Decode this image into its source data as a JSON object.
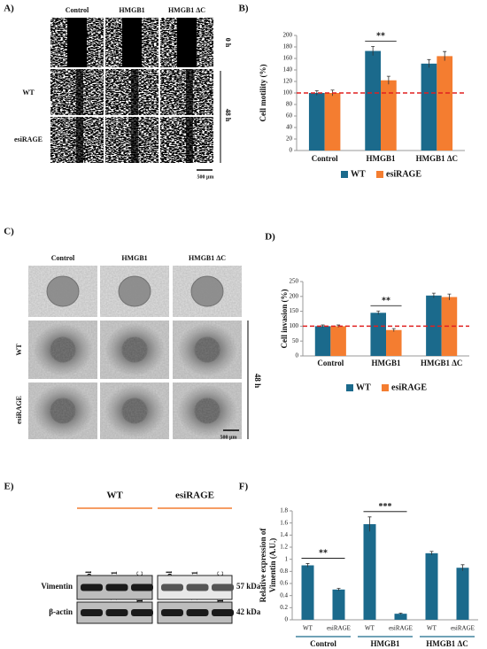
{
  "panel_labels": [
    "A)",
    "B)",
    "C)",
    "D)",
    "E)",
    "F)"
  ],
  "panel_a": {
    "columns": [
      "Control",
      "HMGB1",
      "HMGB1 ΔC"
    ],
    "rows": [
      "WT",
      "esiRAGE"
    ],
    "times": [
      "0 h",
      "48 h"
    ],
    "scale": "500 µm"
  },
  "panel_c": {
    "columns": [
      "Control",
      "HMGB1",
      "HMGB1 ΔC"
    ],
    "rows": [
      "WT",
      "esiRAGE"
    ],
    "time": "48 h",
    "scale": "500 µm"
  },
  "panel_e": {
    "groups": [
      "WT",
      "esiRAGE"
    ],
    "lanes": [
      "Control",
      "HMGB1",
      "HMGB1 ΔC"
    ],
    "proteins": [
      "Vimentin",
      "β-actin"
    ],
    "sizes": [
      "57 kDa",
      "42 kDa"
    ]
  },
  "chart_data": [
    {
      "type": "bar",
      "y_label": [
        "Cell motility (%)"
      ],
      "categories": [
        "Control",
        "HMGB1",
        "HMGB1 ΔC"
      ],
      "series": [
        {
          "name": "WT",
          "color": "#1b6a8c",
          "values": [
            100,
            173,
            151
          ],
          "errors": [
            4,
            8,
            7
          ]
        },
        {
          "name": "esiRAGE",
          "color": "#f47d30",
          "values": [
            100,
            122,
            164
          ],
          "errors": [
            5,
            7,
            8
          ]
        }
      ],
      "ylim": [
        0,
        200
      ],
      "yticks": [
        0,
        20,
        40,
        60,
        80,
        100,
        120,
        140,
        160,
        180,
        200
      ],
      "reference_line": {
        "value": 100,
        "color": "#e02020"
      },
      "annotations": [
        {
          "text": "**",
          "categories": [
            1
          ]
        }
      ],
      "legend": "bottom"
    },
    {
      "type": "bar",
      "y_label": [
        "Cell invasion (%)"
      ],
      "categories": [
        "Control",
        "HMGB1",
        "HMGB1 ΔC"
      ],
      "series": [
        {
          "name": "WT",
          "color": "#1b6a8c",
          "values": [
            100,
            145,
            203
          ],
          "errors": [
            4,
            6,
            8
          ]
        },
        {
          "name": "esiRAGE",
          "color": "#f47d30",
          "values": [
            100,
            87,
            198
          ],
          "errors": [
            4,
            5,
            10
          ]
        }
      ],
      "ylim": [
        0,
        250
      ],
      "yticks": [
        0,
        50,
        100,
        150,
        200,
        250
      ],
      "reference_line": {
        "value": 100,
        "color": "#e02020"
      },
      "annotations": [
        {
          "text": "**",
          "categories": [
            1
          ]
        }
      ],
      "legend": "bottom"
    },
    {
      "type": "bar",
      "y_label": [
        "Relative expression of",
        "Vimentin (A.U.)"
      ],
      "categories": [
        "WT",
        "esiRAGE",
        "WT",
        "esiRAGE",
        "WT",
        "esiRAGE"
      ],
      "groups": [
        "Control",
        "HMGB1",
        "HMGB1 ΔC"
      ],
      "series": [
        {
          "color": "#1b6a8c",
          "values": [
            0.9,
            0.5,
            1.58,
            0.1,
            1.1,
            0.86
          ],
          "errors": [
            0.03,
            0.02,
            0.12,
            0.01,
            0.03,
            0.05
          ]
        }
      ],
      "ylim": [
        0,
        1.8
      ],
      "yticks": [
        0,
        0.2,
        0.4,
        0.6,
        0.8,
        1,
        1.2,
        1.4,
        1.6,
        1.8
      ],
      "annotations": [
        {
          "text": "**",
          "categories": [
            0,
            1
          ]
        },
        {
          "text": "***",
          "categories": [
            2,
            3
          ]
        }
      ]
    }
  ]
}
